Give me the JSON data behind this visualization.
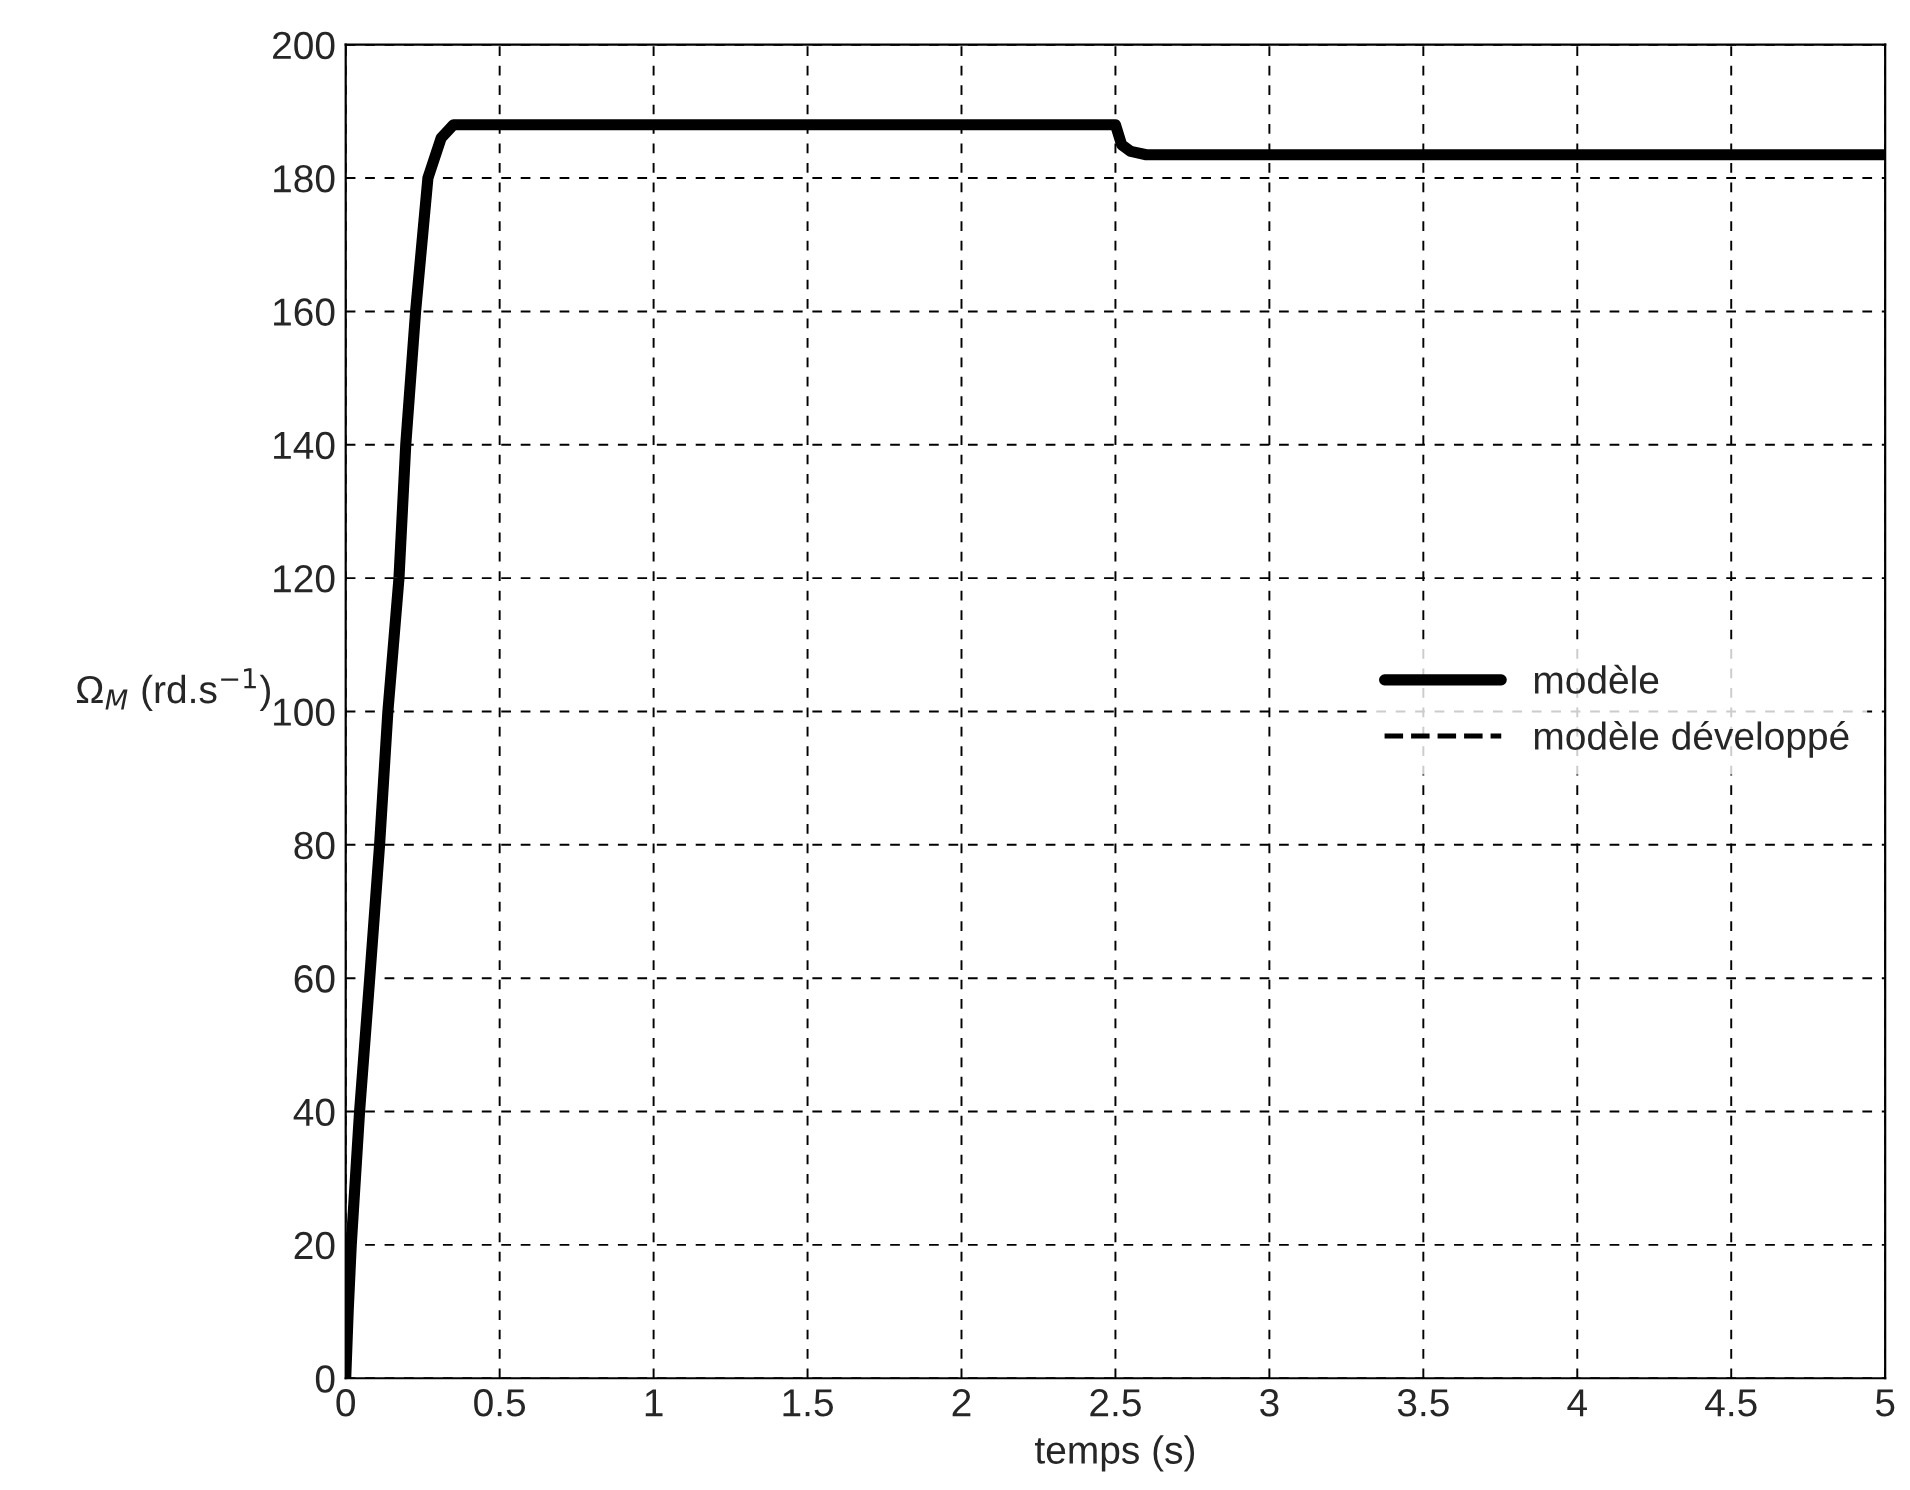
{
  "chart_data": {
    "type": "line",
    "xlabel": "temps (s)",
    "ylabel": "Ω$_{M}$ (rd.s$^{−1}$)",
    "xlim": [
      0,
      5
    ],
    "xticks": [
      0,
      0.5,
      1,
      1.5,
      2,
      2.5,
      3,
      3.5,
      4,
      4.5,
      5
    ],
    "ylim": [
      0,
      200
    ],
    "yticks": [
      0,
      20,
      40,
      60,
      80,
      100,
      120,
      140,
      160,
      180,
      200
    ],
    "grid": true,
    "legend": "center right",
    "series": [
      {
        "name": "modèle",
        "color": "#000000",
        "line_style": "solid",
        "x": [
          0,
          0.008,
          0.018,
          0.045,
          0.078,
          0.11,
          0.137,
          0.173,
          0.195,
          0.227,
          0.267,
          0.31,
          0.35,
          2.5,
          2.52,
          2.55,
          2.6,
          5
        ],
        "values": [
          0,
          10,
          20,
          40,
          60,
          80,
          100,
          120,
          140,
          160,
          180,
          186,
          188,
          188,
          185,
          184,
          183.5,
          183.5
        ]
      },
      {
        "name": "modèle développé",
        "color": "#000000",
        "line_style": "dashed",
        "values": [
          null
        ]
      }
    ]
  }
}
